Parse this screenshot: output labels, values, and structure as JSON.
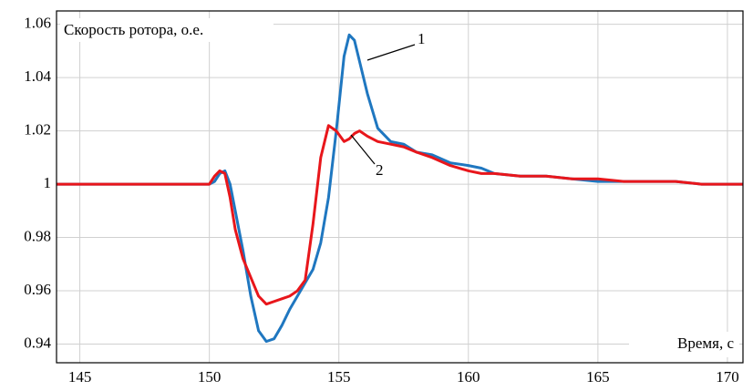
{
  "chart_data": {
    "type": "line",
    "y_label": "Скорость ротора, о.е.",
    "x_label": "Время, с",
    "x": [
      144.1,
      145,
      146,
      147,
      148,
      149,
      150,
      150.2,
      150.4,
      150.6,
      150.8,
      151,
      151.3,
      151.6,
      151.9,
      152.2,
      152.5,
      152.8,
      153.1,
      153.4,
      153.7,
      154,
      154.3,
      154.6,
      154.9,
      155.2,
      155.4,
      155.6,
      155.8,
      156.1,
      156.5,
      157,
      157.5,
      158,
      158.6,
      159.3,
      160,
      160.5,
      161,
      162,
      163,
      164,
      165,
      166,
      167,
      168,
      169,
      170,
      170.6
    ],
    "series": [
      {
        "name": "1",
        "color": "#1f77c0",
        "values": [
          1.0,
          1.0,
          1.0,
          1.0,
          1.0,
          1.0,
          1.0,
          1.001,
          1.004,
          1.005,
          1.0,
          0.99,
          0.975,
          0.958,
          0.945,
          0.941,
          0.942,
          0.947,
          0.953,
          0.958,
          0.963,
          0.968,
          0.978,
          0.995,
          1.02,
          1.048,
          1.056,
          1.054,
          1.046,
          1.034,
          1.021,
          1.016,
          1.015,
          1.012,
          1.011,
          1.008,
          1.007,
          1.006,
          1.004,
          1.003,
          1.003,
          1.002,
          1.001,
          1.001,
          1.001,
          1.001,
          1.0,
          1.0,
          1.0
        ]
      },
      {
        "name": "2",
        "color": "#e8161b",
        "values": [
          1.0,
          1.0,
          1.0,
          1.0,
          1.0,
          1.0,
          1.0,
          1.003,
          1.005,
          1.004,
          0.995,
          0.983,
          0.972,
          0.965,
          0.958,
          0.955,
          0.956,
          0.957,
          0.958,
          0.96,
          0.964,
          0.985,
          1.01,
          1.022,
          1.02,
          1.016,
          1.017,
          1.019,
          1.02,
          1.018,
          1.016,
          1.015,
          1.014,
          1.012,
          1.01,
          1.007,
          1.005,
          1.004,
          1.004,
          1.003,
          1.003,
          1.002,
          1.002,
          1.001,
          1.001,
          1.001,
          1.0,
          1.0,
          1.0
        ]
      }
    ],
    "xlim": [
      144.1,
      170.6
    ],
    "ylim": [
      0.933,
      1.065
    ],
    "xticks": [
      145,
      150,
      155,
      160,
      165,
      170
    ],
    "yticks": [
      1.06,
      1.04,
      1.02,
      1,
      0.98,
      0.96,
      0.94
    ],
    "grid": true
  }
}
